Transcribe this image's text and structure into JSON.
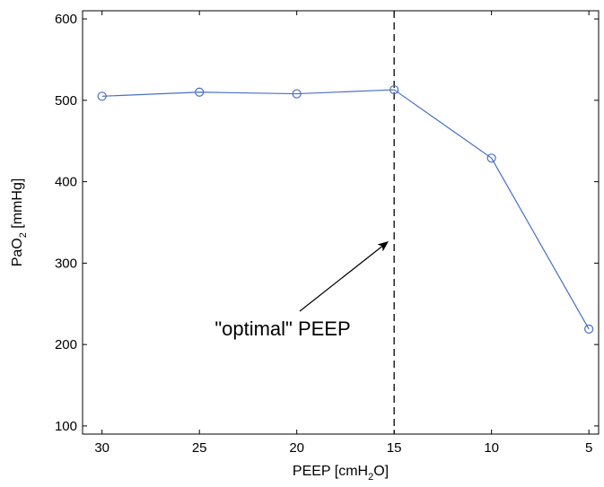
{
  "chart_data": {
    "type": "line",
    "xlabel": {
      "prefix": "PEEP [cmH",
      "sub": "2",
      "suffix": "O]"
    },
    "ylabel": {
      "prefix": "PaO",
      "sub": "2",
      "suffix": " [mmHg]"
    },
    "x": [
      30,
      25,
      20,
      15,
      10,
      5
    ],
    "y": [
      505,
      510,
      508,
      513,
      429,
      219
    ],
    "xlim": [
      31,
      4.5
    ],
    "ylim": [
      90,
      610
    ],
    "x_reversed": true,
    "xticks": [
      30,
      25,
      20,
      15,
      10,
      5
    ],
    "yticks": [
      100,
      200,
      300,
      400,
      500,
      600
    ],
    "grid": false,
    "series_color": "#4a6fc4",
    "marker": "circle",
    "vline": {
      "x": 15,
      "style": "dashed",
      "color": "#000000"
    },
    "annotation": {
      "text": "\"optimal\" PEEP",
      "points_to": {
        "x": 15.5,
        "y": 335
      }
    }
  }
}
